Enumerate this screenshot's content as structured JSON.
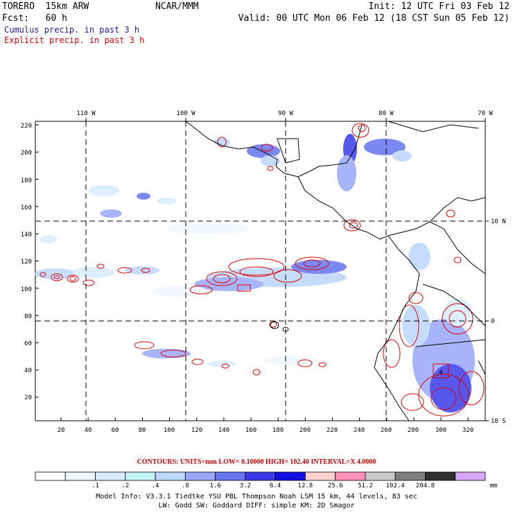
{
  "header": {
    "model": "TORERO  15km ARW",
    "org": "NCAR/MMM",
    "init": "Init: 12 UTC Fri 03 Feb 12",
    "fcst": "Fcst:   60 h",
    "valid": "Valid: 00 UTC Mon 06 Feb 12 (18 CST Sun 05 Feb 12)",
    "cumulus_label": "Cumulus precip. in past 3 h",
    "explicit_label": "Explicit precip. in past 3 h",
    "cumulus_color": "#1a1aa0",
    "explicit_color": "#e00000"
  },
  "map": {
    "top_lon_labels": [
      "110 W",
      "100 W",
      "90 W",
      "80 W",
      "70 W"
    ],
    "right_lat_labels": [
      "10 N",
      "0",
      "10 S"
    ],
    "left_ticks": [
      "220",
      "200",
      "180",
      "160",
      "140",
      "120",
      "100",
      "80",
      "60",
      "40",
      "20"
    ],
    "bottom_ticks": [
      "20",
      "40",
      "60",
      "80",
      "100",
      "120",
      "140",
      "160",
      "180",
      "200",
      "220",
      "240",
      "260",
      "280",
      "300",
      "320"
    ],
    "box_label": "4"
  },
  "contours_info": "CONTOURS:  UNITS=mm  LOW= 0.10000      HIGH=  102.40      INTERVAL=X  4.0000",
  "colorbar": {
    "colors": [
      "#ffffff",
      "#eef6ff",
      "#d8ecff",
      "#c4f4f4",
      "#bcd6ff",
      "#9aa8f8",
      "#6674f0",
      "#3a3ae8",
      "#1010e0",
      "#ffd0d0",
      "#ff90b8",
      "#c8c8c8",
      "#808080",
      "#303030",
      "#d8a8f8"
    ],
    "labels": [
      ".1",
      ".2",
      ".4",
      ".8",
      "1.6",
      "3.2",
      "6.4",
      "12.8",
      "25.6",
      "51.2",
      "102.4",
      "204.8"
    ],
    "unit": "mm"
  },
  "footer": {
    "line1": "Model Info: V3.3.1    Tiedtke YSU PBL  Thompson     Noah LSM  15 km,   44 levels,   83 sec",
    "line2": "LW: Godd SW: Goddard DIFF: simple KM: 2D Smagor"
  }
}
